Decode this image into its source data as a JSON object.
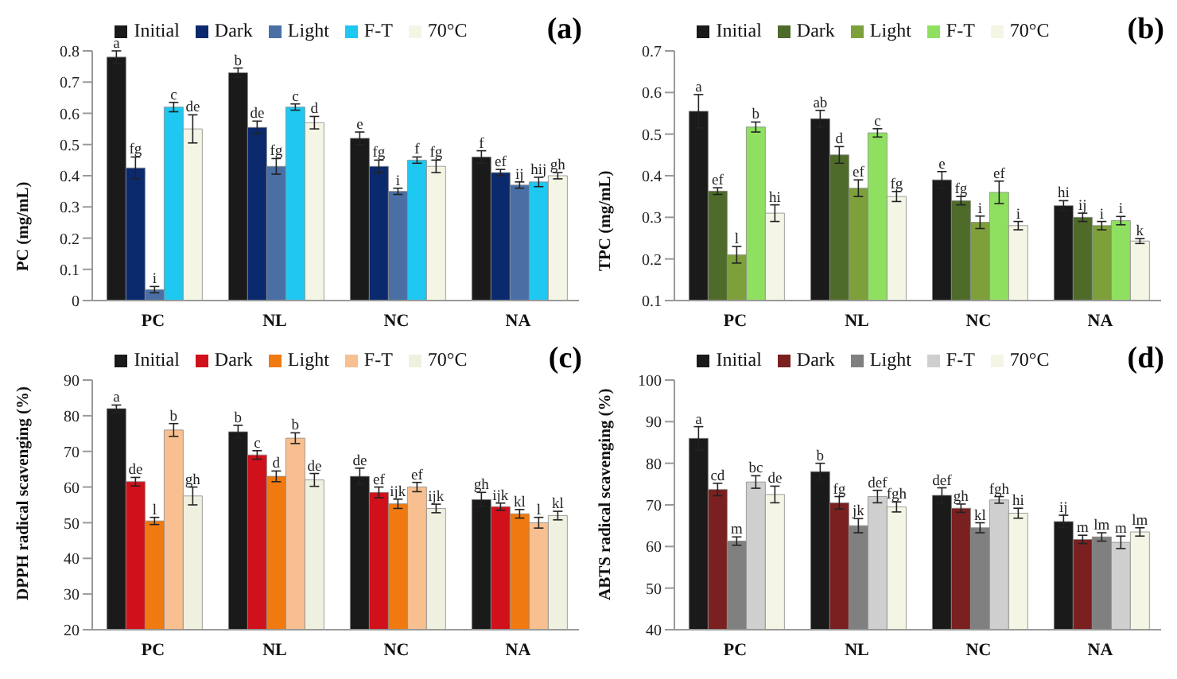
{
  "chart_data": [
    {
      "type": "bar",
      "title": "(a)",
      "ylabel": "PC (mg/mL)",
      "categories": [
        "PC",
        "NL",
        "NC",
        "NA"
      ],
      "ylim": [
        0,
        0.8
      ],
      "yticks": [
        0,
        0.1,
        0.2,
        0.3,
        0.4,
        0.5,
        0.6,
        0.7,
        0.8
      ],
      "legend": "top",
      "series": [
        {
          "name": "Initial",
          "color": "#1a1a1a",
          "values": [
            0.78,
            0.73,
            0.52,
            0.46
          ],
          "errors": [
            0.02,
            0.015,
            0.02,
            0.02
          ],
          "value_labels": [
            "a",
            "b",
            "e",
            "f"
          ]
        },
        {
          "name": "Dark",
          "color": "#0b2a6e",
          "values": [
            0.425,
            0.555,
            0.43,
            0.41
          ],
          "errors": [
            0.035,
            0.02,
            0.02,
            0.01
          ],
          "value_labels": [
            "fg",
            "de",
            "fg",
            "ef"
          ]
        },
        {
          "name": "Light",
          "color": "#4a6fa5",
          "values": [
            0.035,
            0.43,
            0.35,
            0.37
          ],
          "errors": [
            0.01,
            0.025,
            0.01,
            0.01
          ],
          "value_labels": [
            "i",
            "fg",
            "i",
            "ij"
          ]
        },
        {
          "name": "F-T",
          "color": "#1ec8f0",
          "values": [
            0.62,
            0.62,
            0.45,
            0.38
          ],
          "errors": [
            0.015,
            0.01,
            0.01,
            0.015
          ],
          "value_labels": [
            "c",
            "c",
            "f",
            "hij"
          ]
        },
        {
          "name": "70°C",
          "color": "#f5f5e6",
          "values": [
            0.55,
            0.57,
            0.43,
            0.4
          ],
          "errors": [
            0.045,
            0.02,
            0.02,
            0.01
          ],
          "value_labels": [
            "de",
            "d",
            "fg",
            "gh"
          ]
        }
      ]
    },
    {
      "type": "bar",
      "title": "(b)",
      "ylabel": "TPC (mg/mL)",
      "categories": [
        "PC",
        "NL",
        "NC",
        "NA"
      ],
      "ylim": [
        0.1,
        0.7
      ],
      "yticks": [
        0.1,
        0.2,
        0.3,
        0.4,
        0.5,
        0.6,
        0.7
      ],
      "legend": "top",
      "series": [
        {
          "name": "Initial",
          "color": "#1a1a1a",
          "values": [
            0.555,
            0.537,
            0.39,
            0.328
          ],
          "errors": [
            0.04,
            0.02,
            0.02,
            0.012
          ],
          "value_labels": [
            "a",
            "ab",
            "e",
            "hi"
          ]
        },
        {
          "name": "Dark",
          "color": "#4e6b2a",
          "values": [
            0.363,
            0.45,
            0.34,
            0.3
          ],
          "errors": [
            0.008,
            0.02,
            0.01,
            0.01
          ],
          "value_labels": [
            "ef",
            "d",
            "fg",
            "ij"
          ]
        },
        {
          "name": "Light",
          "color": "#7da03a",
          "values": [
            0.21,
            0.37,
            0.288,
            0.28
          ],
          "errors": [
            0.02,
            0.02,
            0.015,
            0.01
          ],
          "value_labels": [
            "l",
            "ef",
            "i",
            "i"
          ]
        },
        {
          "name": "F-T",
          "color": "#8fe060",
          "values": [
            0.517,
            0.503,
            0.36,
            0.292
          ],
          "errors": [
            0.012,
            0.01,
            0.027,
            0.01
          ],
          "value_labels": [
            "b",
            "c",
            "ef",
            "i"
          ]
        },
        {
          "name": "70°C",
          "color": "#f5f5e6",
          "values": [
            0.31,
            0.35,
            0.28,
            0.243
          ],
          "errors": [
            0.02,
            0.012,
            0.01,
            0.006
          ],
          "value_labels": [
            "hi",
            "fg",
            "i",
            "k"
          ]
        }
      ]
    },
    {
      "type": "bar",
      "title": "(c)",
      "ylabel": "DPPH radical scavenging (%)",
      "categories": [
        "PC",
        "NL",
        "NC",
        "NA"
      ],
      "ylim": [
        20,
        90
      ],
      "yticks": [
        20,
        30,
        40,
        50,
        60,
        70,
        80,
        90
      ],
      "legend": "top",
      "series": [
        {
          "name": "Initial",
          "color": "#1a1a1a",
          "values": [
            82,
            75.5,
            63,
            56.5
          ],
          "errors": [
            1,
            1.8,
            2.3,
            2
          ],
          "value_labels": [
            "a",
            "b",
            "de",
            "gh"
          ]
        },
        {
          "name": "Dark",
          "color": "#d0101a",
          "values": [
            61.5,
            69,
            58.5,
            54.5
          ],
          "errors": [
            1.2,
            1.2,
            1.5,
            1
          ],
          "value_labels": [
            "de",
            "c",
            "ef",
            "ijk"
          ]
        },
        {
          "name": "Light",
          "color": "#f07a10",
          "values": [
            50.5,
            63,
            55.3,
            52.5
          ],
          "errors": [
            1,
            1.5,
            1.3,
            1.2
          ],
          "value_labels": [
            "l",
            "d",
            "ijk",
            "kl"
          ]
        },
        {
          "name": "F-T",
          "color": "#f8c090",
          "values": [
            76,
            73.7,
            60,
            50
          ],
          "errors": [
            1.8,
            1.5,
            1.3,
            1.5
          ],
          "value_labels": [
            "b",
            "b",
            "ef",
            "l"
          ]
        },
        {
          "name": "70°C",
          "color": "#f0f0e0",
          "values": [
            57.5,
            62,
            54,
            52
          ],
          "errors": [
            2.5,
            1.8,
            1.2,
            1.2
          ],
          "value_labels": [
            "gh",
            "de",
            "ijk",
            "kl"
          ]
        }
      ]
    },
    {
      "type": "bar",
      "title": "(d)",
      "ylabel": "ABTS radical scavenging (%)",
      "categories": [
        "PC",
        "NL",
        "NC",
        "NA"
      ],
      "ylim": [
        40,
        100
      ],
      "yticks": [
        40,
        50,
        60,
        70,
        80,
        90,
        100
      ],
      "legend": "top",
      "series": [
        {
          "name": "Initial",
          "color": "#1a1a1a",
          "values": [
            86,
            78,
            72.3,
            66
          ],
          "errors": [
            2.8,
            2,
            1.8,
            1.5
          ],
          "value_labels": [
            "a",
            "b",
            "def",
            "ij"
          ]
        },
        {
          "name": "Dark",
          "color": "#7a2020",
          "values": [
            73.7,
            70.5,
            69.2,
            61.7
          ],
          "errors": [
            1.5,
            1.5,
            1,
            1
          ],
          "value_labels": [
            "cd",
            "fg",
            "gh",
            "m"
          ]
        },
        {
          "name": "Light",
          "color": "#808080",
          "values": [
            61.3,
            65,
            64.5,
            62.3
          ],
          "errors": [
            1,
            1.7,
            1.2,
            1
          ],
          "value_labels": [
            "m",
            "jk",
            "kl",
            "lm"
          ]
        },
        {
          "name": "F-T",
          "color": "#cfcfcf",
          "values": [
            75.5,
            72,
            71.2,
            61
          ],
          "errors": [
            1.5,
            1.5,
            0.8,
            1.5
          ],
          "value_labels": [
            "bc",
            "def",
            "fgh",
            "m"
          ]
        },
        {
          "name": "70°C",
          "color": "#f5f5e6",
          "values": [
            72.5,
            69.5,
            68,
            63.5
          ],
          "errors": [
            2,
            1.2,
            1.2,
            1
          ],
          "value_labels": [
            "de",
            "fgh",
            "hi",
            "lm"
          ]
        }
      ]
    }
  ]
}
